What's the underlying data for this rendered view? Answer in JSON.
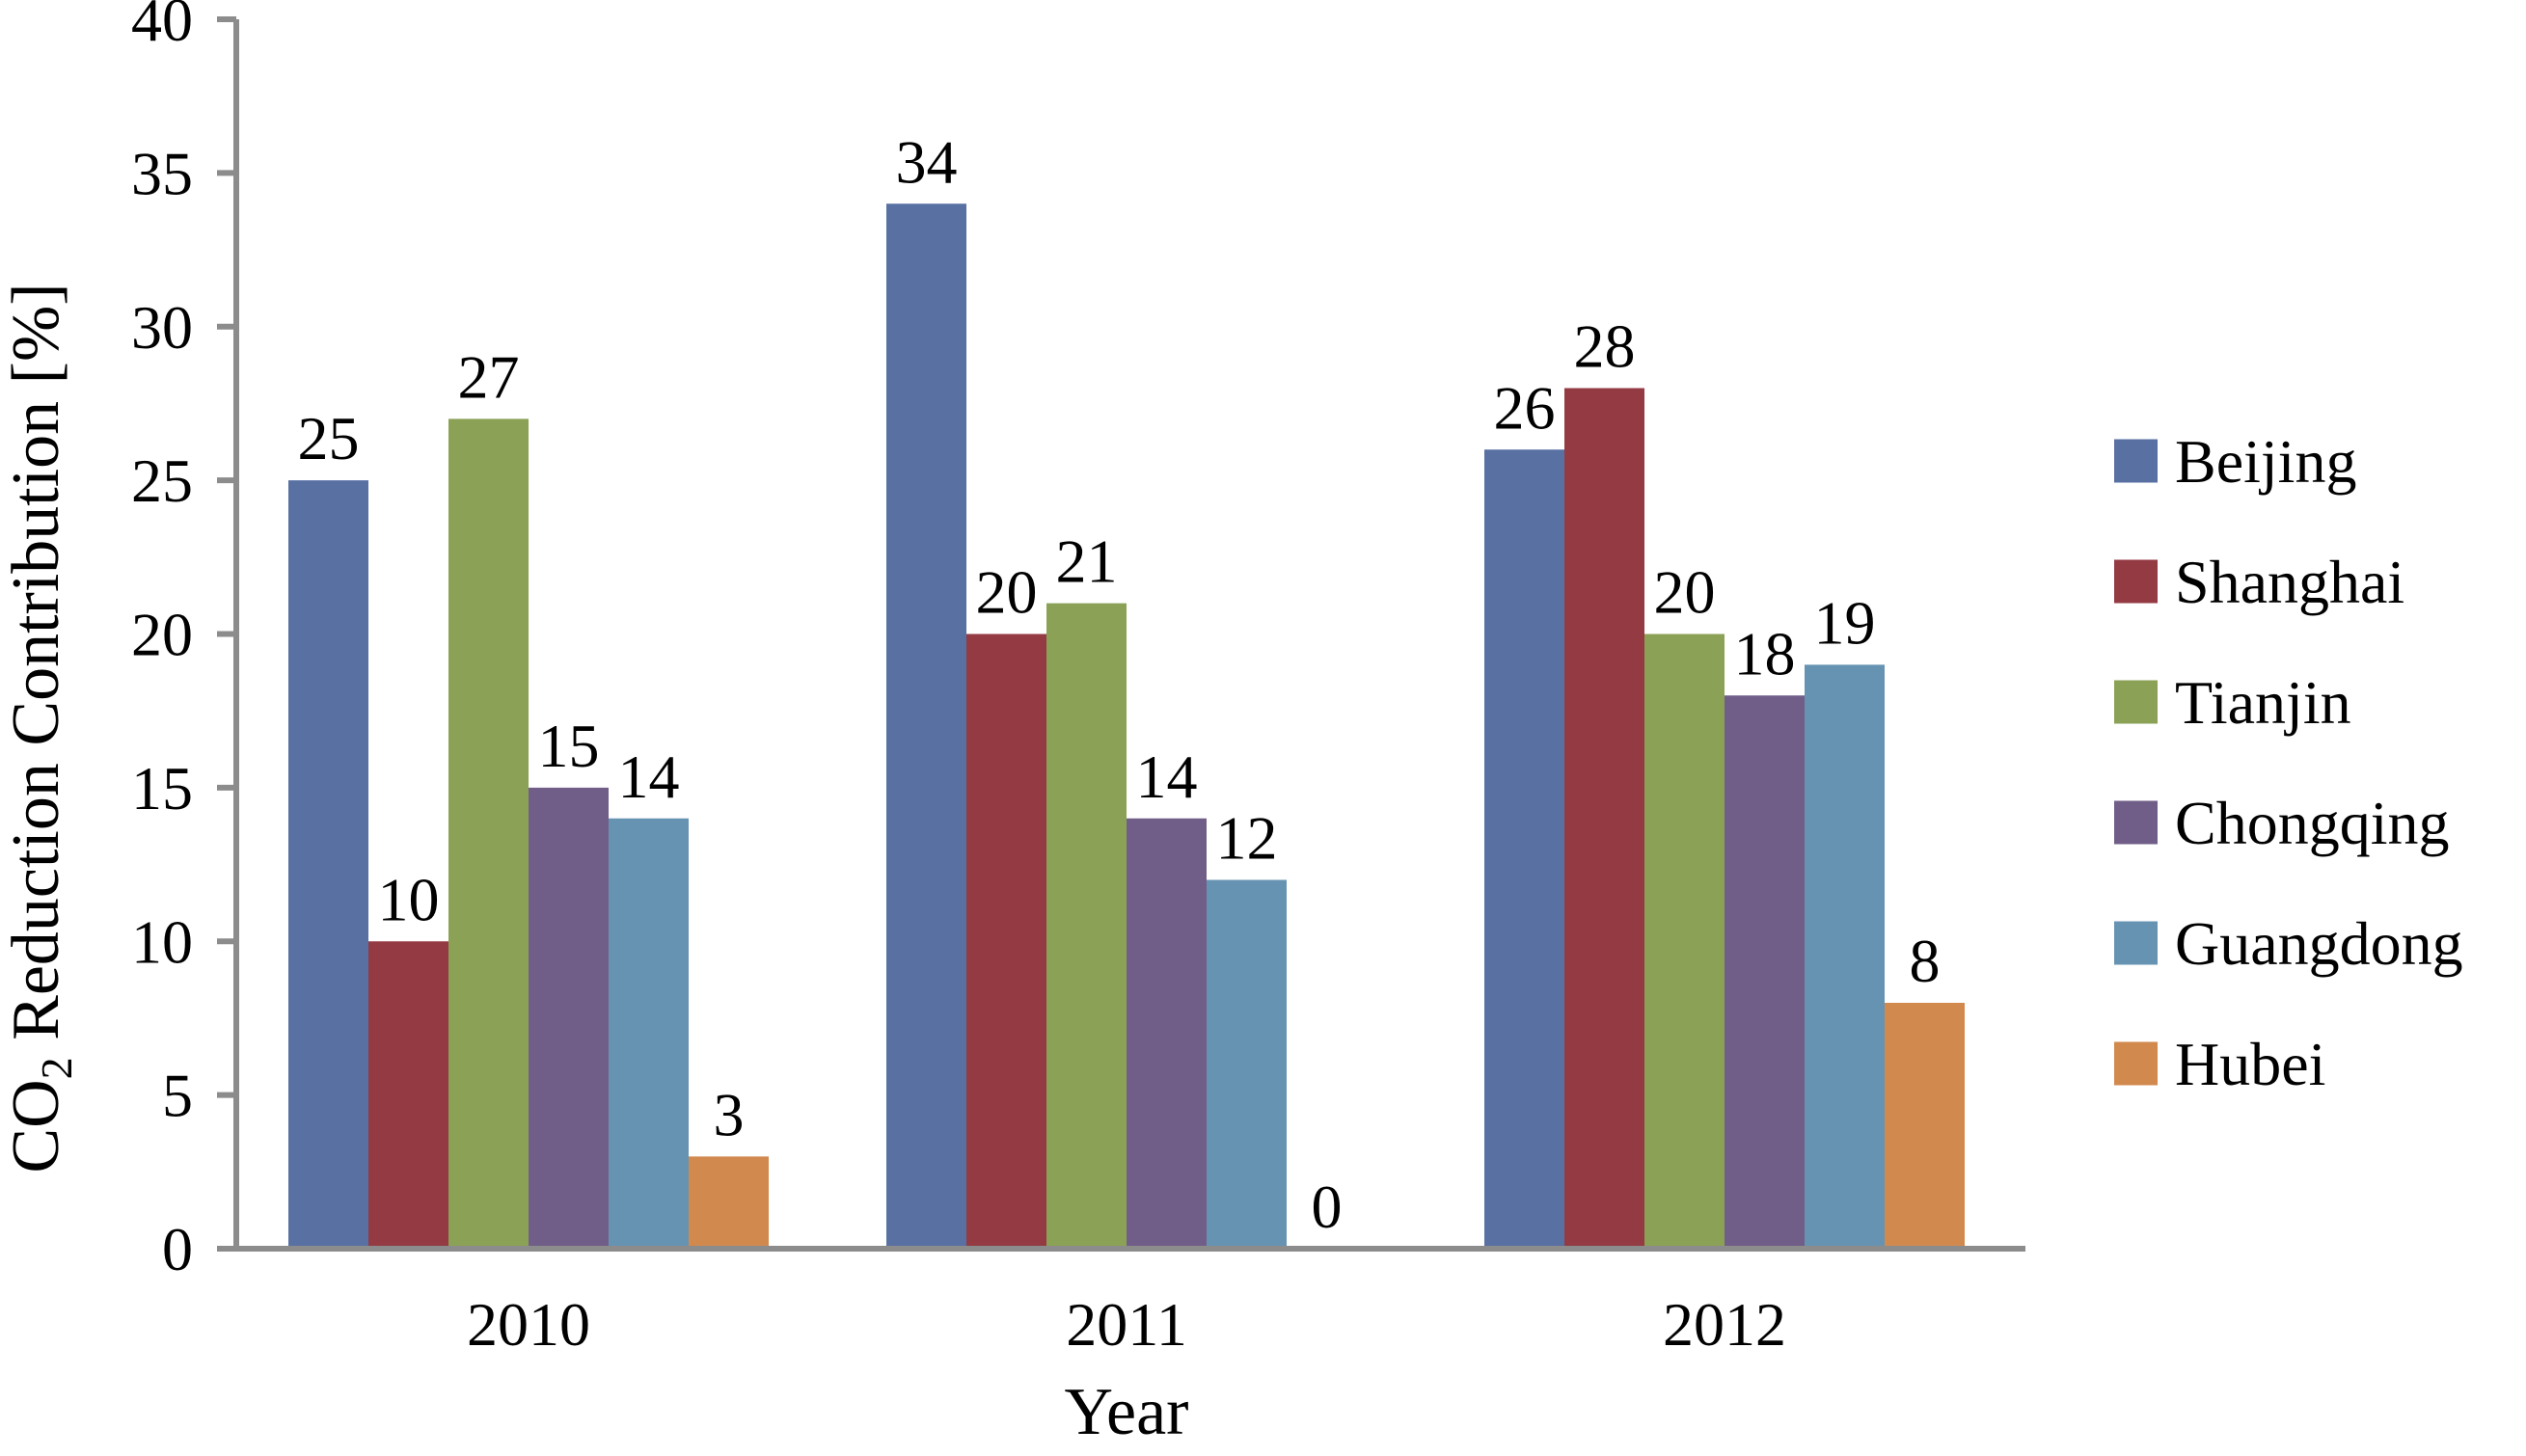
{
  "chart_data": {
    "type": "bar",
    "categories": [
      "2010",
      "2011",
      "2012"
    ],
    "series": [
      {
        "name": "Beijing",
        "values": [
          25,
          34,
          26
        ],
        "color": "#5870A2"
      },
      {
        "name": "Shanghai",
        "values": [
          10,
          20,
          28
        ],
        "color": "#943A43"
      },
      {
        "name": "Tianjin",
        "values": [
          27,
          21,
          20
        ],
        "color": "#8BA256"
      },
      {
        "name": "Chongqing",
        "values": [
          15,
          14,
          18
        ],
        "color": "#715E88"
      },
      {
        "name": "Guangdong",
        "values": [
          14,
          12,
          19
        ],
        "color": "#6793B2"
      },
      {
        "name": "Hubei",
        "values": [
          3,
          0,
          8
        ],
        "color": "#D2894E"
      }
    ],
    "xlabel": "Year",
    "ylabel": {
      "prefix": "CO",
      "subscript": "2",
      "rest": " Reduction Contribution [%]"
    },
    "ylim": [
      0,
      40
    ],
    "yticks": [
      0,
      5,
      10,
      15,
      20,
      25,
      30,
      35,
      40
    ],
    "legend": "right",
    "grid": false,
    "axis_color": "#8C8C8C"
  }
}
